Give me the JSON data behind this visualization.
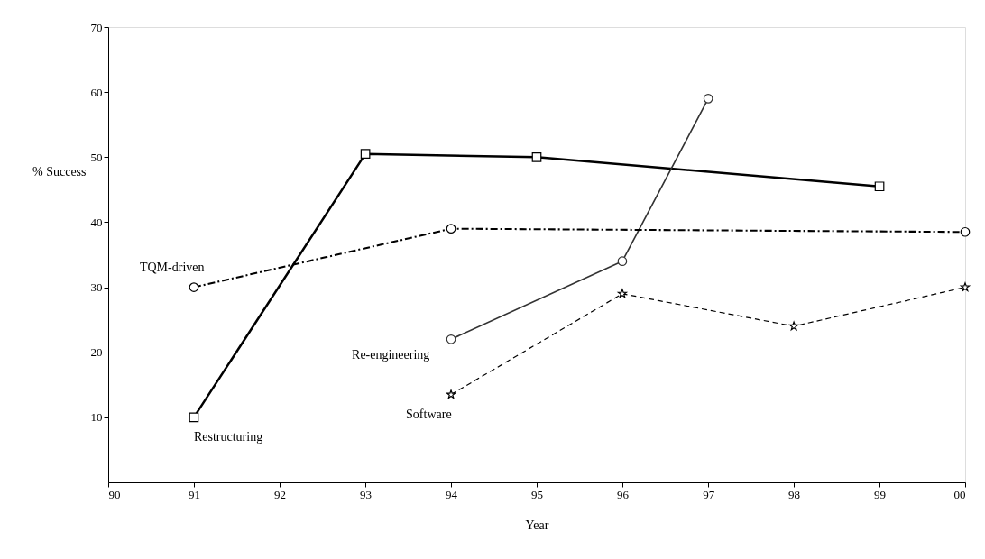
{
  "chart_data": {
    "type": "line",
    "xlabel": "Year",
    "ylabel": "% Success",
    "xlim": [
      "1990",
      "2000"
    ],
    "xticks": [
      {
        "value": "1990",
        "label": "90"
      },
      {
        "value": "1991",
        "label": "91"
      },
      {
        "value": "1992",
        "label": "92"
      },
      {
        "value": "1993",
        "label": "93"
      },
      {
        "value": "1994",
        "label": "94"
      },
      {
        "value": "1995",
        "label": "95"
      },
      {
        "value": "1996",
        "label": "96"
      },
      {
        "value": "1997",
        "label": "97"
      },
      {
        "value": "1998",
        "label": "98"
      },
      {
        "value": "1999",
        "label": "99"
      },
      {
        "value": "2000",
        "label": "00"
      }
    ],
    "ylim": [
      0,
      70
    ],
    "yticks": [
      10,
      20,
      30,
      40,
      50,
      60,
      70
    ],
    "grid": false,
    "legend": false,
    "series": [
      {
        "name": "Restructuring",
        "color": "#000000",
        "marker": "square",
        "line_style": "solid",
        "x": [
          "1991",
          "1993",
          "1995",
          "1999"
        ],
        "values": [
          10,
          50.5,
          50,
          45.5
        ]
      },
      {
        "name": "TQM-driven",
        "color": "#000000",
        "marker": "circle",
        "line_style": "dashdot",
        "x": [
          "1991",
          "1994",
          "2000"
        ],
        "values": [
          30,
          39,
          38.5
        ]
      },
      {
        "name": "Re-engineering",
        "color": "#333333",
        "marker": "circle",
        "line_style": "solid",
        "x": [
          "1994",
          "1996",
          "1997"
        ],
        "values": [
          22,
          34,
          59
        ]
      },
      {
        "name": "Software",
        "color": "#000000",
        "marker": "star",
        "line_style": "dashed",
        "x": [
          "1994",
          "1996",
          "1998",
          "2000"
        ],
        "values": [
          13.5,
          29,
          24,
          30
        ]
      }
    ]
  }
}
